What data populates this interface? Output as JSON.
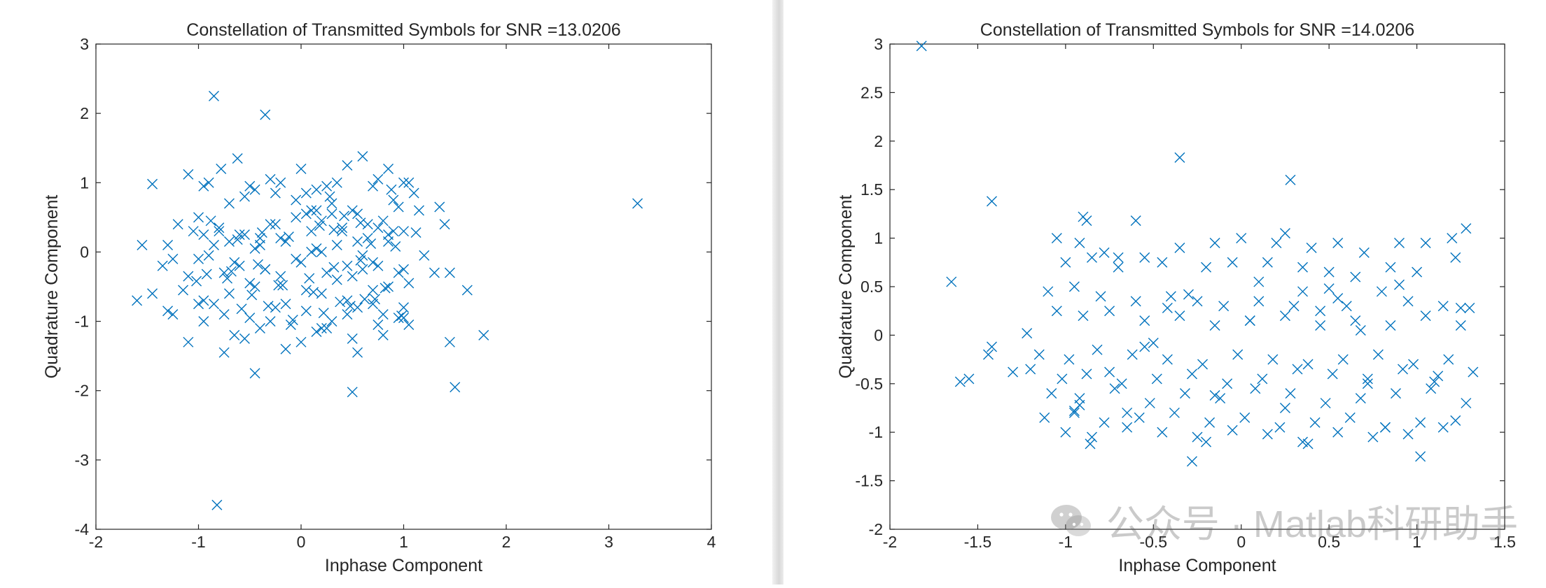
{
  "chart_data": [
    {
      "type": "scatter",
      "title": "Constellation of Transmitted Symbols for SNR =13.0206",
      "xlabel": "Inphase Component",
      "ylabel": "Quadrature Component",
      "xlim": [
        -2,
        4
      ],
      "ylim": [
        -4,
        3
      ],
      "xticks": [
        -2,
        -1,
        0,
        1,
        2,
        3,
        4
      ],
      "yticks": [
        -4,
        -3,
        -2,
        -1,
        0,
        1,
        2,
        3
      ],
      "marker": "x",
      "color": "#0072BD",
      "grid": false,
      "series": [
        {
          "x": [
            -0.85,
            -0.35,
            -0.62,
            -0.78,
            -1.1,
            -0.9,
            -0.5,
            -0.3,
            0.0,
            0.15,
            0.35,
            0.45,
            0.6,
            0.75,
            0.85,
            1.0,
            1.1,
            -1.2,
            -0.95,
            -0.7,
            -0.45,
            -0.2,
            0.05,
            0.25,
            0.5,
            0.7,
            0.9,
            1.05,
            -1.45,
            -1.0,
            -0.8,
            -0.55,
            -0.25,
            0.1,
            0.3,
            0.55,
            0.8,
            1.0,
            1.15,
            -1.3,
            -1.05,
            -0.85,
            -0.6,
            -0.4,
            -0.15,
            0.15,
            0.4,
            0.65,
            0.85,
            -1.55,
            -1.25,
            -0.9,
            -0.65,
            -0.35,
            -0.05,
            0.2,
            0.45,
            0.7,
            0.95,
            1.2,
            -1.35,
            -1.1,
            -0.75,
            -0.5,
            -0.2,
            0.05,
            0.35,
            0.6,
            0.85,
            1.05,
            -1.45,
            -1.15,
            -0.95,
            -0.7,
            -0.45,
            -0.15,
            0.2,
            0.45,
            0.7,
            1.0,
            1.3,
            -1.6,
            -1.3,
            -1.0,
            -0.75,
            -0.5,
            -0.25,
            0.05,
            0.3,
            0.55,
            0.8,
            1.0,
            -1.25,
            -0.95,
            -0.65,
            -0.4,
            -0.1,
            0.2,
            0.5,
            0.75,
            0.95,
            -1.1,
            -0.85,
            -0.55,
            -0.3,
            0.0,
            0.25,
            0.55,
            0.8,
            1.05,
            -0.75,
            -0.45,
            -0.15,
            0.15,
            0.45,
            0.7,
            1.45,
            1.62,
            1.78,
            3.28,
            1.35,
            -0.82,
            0.5,
            1.5,
            -0.4,
            -0.8,
            -0.55,
            0.1,
            0.3,
            0.55,
            0.75,
            0.95,
            -0.3,
            -0.05,
            0.2,
            0.4,
            0.65,
            0.9,
            -0.95,
            -0.7,
            -0.45,
            -0.2,
            0.1,
            0.35,
            0.6,
            0.85,
            -1.0,
            -0.6,
            -0.35,
            0.0,
            0.25,
            0.5,
            0.75,
            1.0,
            1.4,
            1.45,
            0.32,
            0.15,
            -0.05,
            -0.25,
            0.05,
            0.28,
            0.58,
            0.88,
            -0.88,
            -0.62,
            -0.38,
            -0.12,
            0.18,
            0.42,
            0.68,
            0.92,
            1.12,
            -1.02,
            -0.72,
            -0.48,
            -0.22,
            0.12,
            0.38,
            0.62,
            0.82,
            -0.58,
            -0.32,
            -0.08,
            0.22,
            0.48,
            0.72,
            0.98,
            -0.92,
            -0.68,
            -0.42,
            -0.18,
            0.08,
            0.32,
            0.58
          ],
          "y": [
            2.25,
            1.98,
            1.35,
            1.2,
            1.12,
            1.0,
            0.95,
            1.05,
            1.2,
            0.9,
            1.0,
            1.25,
            1.38,
            1.05,
            1.2,
            1.0,
            0.85,
            0.4,
            0.95,
            0.7,
            0.9,
            1.0,
            0.85,
            0.95,
            0.6,
            0.95,
            0.75,
            1.0,
            0.98,
            0.5,
            0.35,
            0.25,
            0.4,
            0.3,
            0.55,
            0.15,
            0.45,
            0.3,
            0.6,
            0.1,
            0.3,
            0.1,
            0.25,
            0.2,
            0.15,
            0.05,
            0.3,
            0.4,
            0.25,
            0.1,
            -0.1,
            -0.05,
            -0.15,
            -0.25,
            -0.1,
            0.0,
            -0.2,
            -0.15,
            -0.3,
            -0.05,
            -0.2,
            -0.35,
            -0.3,
            -0.45,
            -0.35,
            -0.55,
            -0.4,
            -0.25,
            -0.5,
            -0.45,
            -0.6,
            -0.55,
            -0.7,
            -0.6,
            -0.5,
            -0.75,
            -0.6,
            -0.7,
            -0.55,
            -0.8,
            -0.3,
            -0.7,
            -0.85,
            -0.75,
            -0.9,
            -0.95,
            -0.8,
            -0.85,
            -1.0,
            -0.8,
            -0.9,
            -0.95,
            -0.9,
            -1.0,
            -1.2,
            -1.1,
            -1.05,
            -1.1,
            -1.25,
            -1.05,
            -0.95,
            -1.3,
            -0.75,
            -1.25,
            -1.0,
            -1.3,
            -1.1,
            -1.45,
            -1.2,
            -1.05,
            -1.45,
            -1.75,
            -1.4,
            -1.15,
            -0.9,
            -0.75,
            -1.3,
            -0.55,
            -1.2,
            0.7,
            0.65,
            -3.65,
            -2.02,
            -1.95,
            0.1,
            0.3,
            0.8,
            0.6,
            0.7,
            0.55,
            0.35,
            0.65,
            0.4,
            0.5,
            0.45,
            0.35,
            0.2,
            0.3,
            0.25,
            0.15,
            0.05,
            0.2,
            0.0,
            0.1,
            -0.05,
            0.15,
            -0.1,
            -0.2,
            -0.25,
            -0.15,
            -0.3,
            -0.35,
            -0.2,
            -0.25,
            0.4,
            -0.3,
            0.32,
            0.6,
            0.75,
            0.85,
            0.55,
            0.8,
            0.42,
            0.9,
            0.45,
            0.18,
            0.28,
            0.22,
            0.38,
            0.52,
            0.12,
            0.08,
            0.28,
            -0.42,
            -0.38,
            -0.62,
            -0.48,
            -0.58,
            -0.72,
            -0.68,
            -0.52,
            -0.82,
            -0.78,
            -0.98,
            -0.88,
            -0.78,
            -0.68,
            -0.92,
            -0.32,
            -0.28,
            -0.18,
            -0.48,
            -0.38,
            -0.22,
            -0.12
          ]
        }
      ]
    },
    {
      "type": "scatter",
      "title": "Constellation of Transmitted Symbols for SNR =14.0206",
      "xlabel": "Inphase Component",
      "ylabel": "Quadrature Component",
      "xlim": [
        -2,
        1.5
      ],
      "ylim": [
        -2,
        3
      ],
      "xticks": [
        -2,
        -1.5,
        -1,
        -0.5,
        0,
        0.5,
        1,
        1.5
      ],
      "yticks": [
        -2,
        -1.5,
        -1,
        -0.5,
        0,
        0.5,
        1,
        1.5,
        2,
        2.5,
        3
      ],
      "marker": "x",
      "color": "#0072BD",
      "grid": false,
      "series": [
        {
          "x": [
            -1.82,
            -0.35,
            0.28,
            -1.42,
            -1.65,
            -1.42,
            -1.44,
            -1.55,
            -1.6,
            -0.9,
            -0.88,
            -0.6,
            -0.7,
            0.25,
            -1.05,
            -0.92,
            -0.78,
            -0.55,
            -0.35,
            -0.15,
            0.0,
            0.2,
            0.4,
            0.55,
            0.7,
            0.9,
            1.05,
            1.2,
            1.28,
            -1.0,
            -0.85,
            -0.7,
            -0.45,
            -0.2,
            -0.05,
            0.15,
            0.35,
            0.5,
            0.65,
            0.85,
            1.0,
            1.22,
            -1.1,
            -0.95,
            -0.8,
            -0.6,
            -0.4,
            -0.25,
            -0.1,
            0.1,
            0.3,
            0.45,
            0.6,
            0.8,
            0.95,
            1.15,
            1.3,
            -1.05,
            -0.9,
            -0.75,
            -0.55,
            -0.35,
            -0.15,
            0.05,
            0.25,
            0.45,
            0.65,
            0.85,
            1.05,
            1.25,
            -1.15,
            -0.98,
            -0.82,
            -0.62,
            -0.42,
            -0.22,
            -0.02,
            0.18,
            0.38,
            0.58,
            0.78,
            0.98,
            1.18,
            -1.2,
            -1.02,
            -0.88,
            -0.68,
            -0.48,
            -0.28,
            -0.08,
            0.12,
            0.32,
            0.52,
            0.72,
            0.92,
            1.12,
            1.32,
            -1.08,
            -0.92,
            -0.72,
            -0.52,
            -0.32,
            -0.12,
            0.08,
            0.28,
            0.48,
            0.68,
            0.88,
            1.08,
            1.28,
            -1.12,
            -0.95,
            -0.78,
            -0.58,
            -0.38,
            -0.18,
            0.02,
            0.22,
            0.42,
            0.62,
            0.82,
            1.02,
            1.22,
            -1.0,
            -0.85,
            -0.65,
            -0.45,
            -0.25,
            -0.05,
            0.15,
            0.35,
            0.55,
            0.75,
            0.95,
            1.15,
            -0.28,
            1.02,
            0.35,
            -0.92,
            -1.22,
            -1.3,
            -0.3,
            0.1,
            0.5,
            0.9,
            -0.5,
            0.68,
            -0.75,
            -0.55,
            -0.15,
            0.25,
            0.72,
            1.1,
            -0.95,
            -0.65,
            -0.2,
            0.38,
            0.82,
            -0.86,
            -0.42,
            0.05,
            0.55,
            1.25
          ],
          "y": [
            2.98,
            1.83,
            1.6,
            1.38,
            0.55,
            -0.12,
            -0.2,
            -0.45,
            -0.48,
            1.22,
            1.18,
            1.18,
            0.8,
            1.05,
            1.0,
            0.95,
            0.85,
            0.8,
            0.9,
            0.95,
            1.0,
            0.95,
            0.9,
            0.95,
            0.85,
            0.95,
            0.95,
            1.0,
            1.1,
            0.75,
            0.8,
            0.7,
            0.75,
            0.7,
            0.75,
            0.75,
            0.7,
            0.65,
            0.6,
            0.7,
            0.65,
            0.8,
            0.45,
            0.5,
            0.4,
            0.35,
            0.4,
            0.35,
            0.3,
            0.35,
            0.3,
            0.25,
            0.3,
            0.45,
            0.35,
            0.3,
            0.28,
            0.25,
            0.2,
            0.25,
            0.15,
            0.2,
            0.1,
            0.15,
            0.2,
            0.1,
            0.15,
            0.1,
            0.2,
            0.1,
            -0.2,
            -0.25,
            -0.15,
            -0.2,
            -0.25,
            -0.3,
            -0.2,
            -0.25,
            -0.3,
            -0.25,
            -0.2,
            -0.3,
            -0.25,
            -0.35,
            -0.45,
            -0.4,
            -0.5,
            -0.45,
            -0.4,
            -0.5,
            -0.45,
            -0.35,
            -0.4,
            -0.45,
            -0.35,
            -0.42,
            -0.38,
            -0.6,
            -0.65,
            -0.55,
            -0.7,
            -0.6,
            -0.65,
            -0.55,
            -0.6,
            -0.7,
            -0.65,
            -0.6,
            -0.55,
            -0.7,
            -0.85,
            -0.8,
            -0.9,
            -0.85,
            -0.8,
            -0.9,
            -0.85,
            -0.95,
            -0.9,
            -0.85,
            -0.95,
            -0.9,
            -0.88,
            -1.0,
            -1.05,
            -0.95,
            -1.0,
            -1.05,
            -0.98,
            -1.02,
            -1.1,
            -1.0,
            -1.05,
            -1.02,
            -0.95,
            -1.3,
            -1.25,
            0.45,
            -0.72,
            0.02,
            -0.38,
            0.42,
            0.55,
            0.48,
            0.52,
            -0.08,
            0.05,
            -0.38,
            -0.12,
            -0.62,
            -0.75,
            -0.5,
            -0.48,
            -0.78,
            -0.8,
            -1.1,
            -1.12,
            -0.95,
            -1.12,
            0.28,
            0.15,
            0.38,
            0.28
          ]
        }
      ]
    }
  ],
  "watermark": {
    "text": "公众号 · Matlab科研助手",
    "icon": "wechat-icon"
  }
}
